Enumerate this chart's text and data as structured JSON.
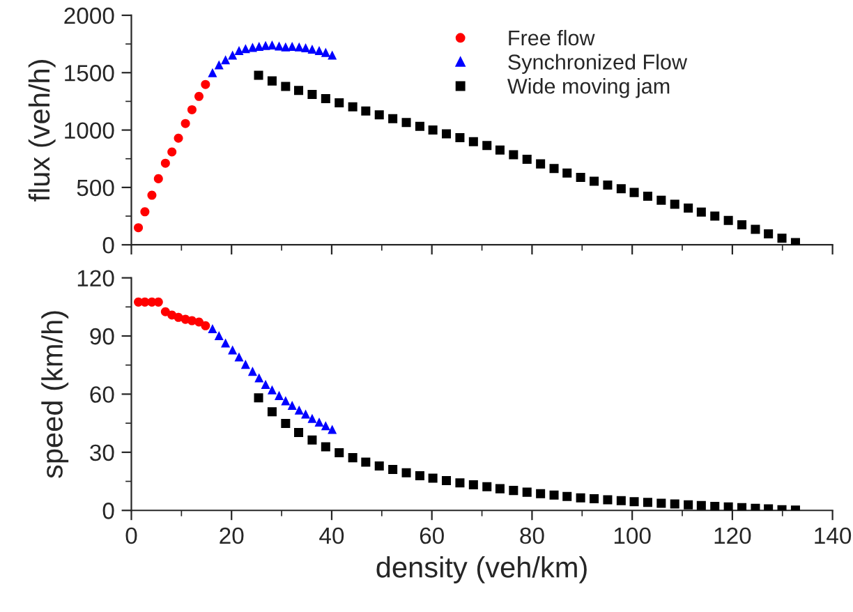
{
  "chart_data": [
    {
      "type": "scatter",
      "ylabel": "flux (veh/h)",
      "xlim": [
        0,
        140
      ],
      "xticks": [
        0,
        20,
        40,
        60,
        80,
        100,
        120,
        140
      ],
      "ylim": [
        0,
        2000
      ],
      "yticks": [
        0,
        500,
        1000,
        1500,
        2000
      ],
      "tick_labels": "y",
      "legend": "top right",
      "grid": false,
      "series": [
        {
          "name": "Free flow",
          "color": "#ff0000",
          "marker": "circle",
          "x": [
            1.4,
            2.7,
            4.1,
            5.4,
            6.8,
            8.1,
            9.4,
            10.8,
            12.1,
            13.5,
            14.8
          ],
          "values": [
            149,
            288,
            432,
            576,
            711,
            809,
            929,
            1057,
            1177,
            1293,
            1397
          ]
        },
        {
          "name": "Synchronized Flow",
          "color": "#0000ff",
          "marker": "triangle",
          "x": [
            16.2,
            17.5,
            18.8,
            20.2,
            21.5,
            22.8,
            24.2,
            25.5,
            26.8,
            28.1,
            29.5,
            30.8,
            32.1,
            33.5,
            34.8,
            36.1,
            37.5,
            38.8,
            40.1
          ],
          "values": [
            1500,
            1569,
            1613,
            1653,
            1693,
            1709,
            1721,
            1729,
            1737,
            1741,
            1733,
            1725,
            1729,
            1725,
            1717,
            1705,
            1693,
            1677,
            1653
          ]
        },
        {
          "name": "Wide moving jam",
          "color": "#000000",
          "marker": "square",
          "x": [
            25.4,
            28.1,
            30.8,
            33.4,
            36.1,
            38.8,
            41.5,
            44.2,
            46.8,
            49.5,
            52.2,
            54.9,
            57.6,
            60.2,
            62.9,
            65.6,
            68.3,
            71.0,
            73.6,
            76.3,
            79.0,
            81.7,
            84.4,
            87.0,
            89.7,
            92.4,
            95.1,
            97.8,
            100.4,
            103.1,
            105.8,
            108.5,
            111.2,
            113.8,
            116.5,
            119.2,
            121.9,
            124.6,
            127.2,
            129.9,
            132.6
          ],
          "values": [
            1477,
            1428,
            1380,
            1345,
            1310,
            1274,
            1238,
            1202,
            1166,
            1132,
            1099,
            1066,
            1033,
            1000,
            967,
            933,
            899,
            865,
            826,
            785,
            745,
            705,
            665,
            625,
            587,
            554,
            521,
            489,
            456,
            424,
            389,
            354,
            320,
            285,
            250,
            212,
            174,
            135,
            96,
            58,
            20
          ]
        }
      ]
    },
    {
      "type": "scatter",
      "xlabel": "density (veh/km)",
      "ylabel": "speed (km/h)",
      "xlim": [
        0,
        140
      ],
      "xticks": [
        0,
        20,
        40,
        60,
        80,
        100,
        120,
        140
      ],
      "ylim": [
        0,
        120
      ],
      "yticks": [
        0,
        30,
        60,
        90,
        120
      ],
      "grid": false,
      "series": [
        {
          "color": "#ff0000",
          "marker": "circle",
          "x": [
            1.4,
            2.7,
            4.1,
            5.4,
            6.8,
            8.1,
            9.4,
            10.8,
            12.1,
            13.5,
            14.8
          ],
          "values": [
            107.5,
            107.5,
            107.5,
            107.5,
            102.5,
            100.8,
            99.6,
            98.6,
            97.9,
            97.2,
            95.3
          ]
        },
        {
          "color": "#0000ff",
          "marker": "triangle",
          "x": [
            16.2,
            17.5,
            18.8,
            20.2,
            21.5,
            22.8,
            24.2,
            25.5,
            26.8,
            28.1,
            29.5,
            30.8,
            32.1,
            33.5,
            34.8,
            36.1,
            37.5,
            38.8,
            40.1
          ],
          "values": [
            93.8,
            90.2,
            86.4,
            82.8,
            79.2,
            75.4,
            71.8,
            68.4,
            65.0,
            62.2,
            59.3,
            56.6,
            54.2,
            51.8,
            49.7,
            47.5,
            45.6,
            43.7,
            41.8
          ]
        },
        {
          "color": "#000000",
          "marker": "square",
          "x": [
            25.4,
            28.1,
            30.8,
            33.4,
            36.1,
            38.8,
            41.5,
            44.2,
            46.8,
            49.5,
            52.2,
            54.9,
            57.6,
            60.2,
            62.9,
            65.6,
            68.3,
            71.0,
            73.6,
            76.3,
            79.0,
            81.7,
            84.4,
            87.0,
            89.7,
            92.4,
            95.1,
            97.8,
            100.4,
            103.1,
            105.8,
            108.5,
            111.2,
            113.8,
            116.5,
            119.2,
            121.9,
            124.6,
            127.2,
            129.9,
            132.6
          ],
          "values": [
            58.1,
            50.9,
            44.9,
            40.2,
            36.3,
            32.8,
            29.8,
            27.2,
            24.9,
            22.9,
            21.1,
            19.4,
            17.9,
            16.6,
            15.4,
            14.2,
            13.2,
            12.2,
            11.2,
            10.3,
            9.4,
            8.6,
            7.9,
            7.2,
            6.5,
            6.0,
            5.5,
            5.0,
            4.5,
            4.1,
            3.7,
            3.3,
            2.9,
            2.5,
            2.1,
            1.8,
            1.4,
            1.1,
            0.8,
            0.4,
            0.2
          ]
        }
      ]
    }
  ]
}
